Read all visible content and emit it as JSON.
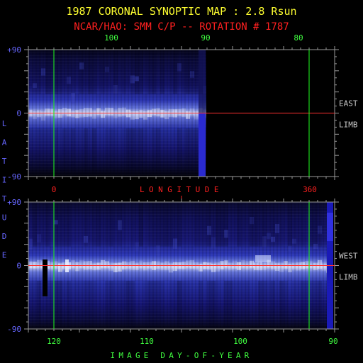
{
  "page": {
    "title": "1987 CORONAL SYNOPTIC MAP : 2.8 Rsun",
    "subtitle": "NCAR/HAO: SMM C/P -- ROTATION # 1787"
  },
  "colors": {
    "title": "#ffff30",
    "subtitle": "#ff2020",
    "axis_blue": "#6666ff",
    "axis_green": "#40ff40",
    "axis_red": "#ff2020",
    "frame": "#9a9a9a",
    "grid_green": "#20ff20",
    "equator_red": "#ff3030",
    "limb_label": "#c8c8c8"
  },
  "chart_data": [
    {
      "type": "heatmap",
      "panel": "east",
      "limb_label": [
        "EAST",
        "LIMB"
      ],
      "ylim": [
        -90,
        90
      ],
      "yticks": [
        {
          "value": 90,
          "label": "+90"
        },
        {
          "value": 0,
          "label": "0"
        },
        {
          "value": -90,
          "label": "-90"
        }
      ],
      "top_axis_ticks": [
        {
          "value": 100,
          "label": "100"
        },
        {
          "value": 90,
          "label": "90"
        },
        {
          "value": 80,
          "label": "80"
        }
      ],
      "bottom_axis_label": "LONGITUDE",
      "bottom_axis_ticks": [
        {
          "value": 0,
          "label": "0"
        },
        {
          "value": 360,
          "label": "360"
        }
      ],
      "vertical_markers": [
        0,
        360
      ],
      "equator_line": 0,
      "data_extent_fraction": 0.58
    },
    {
      "type": "heatmap",
      "panel": "west",
      "limb_label": [
        "WEST",
        "LIMB"
      ],
      "ylim": [
        -90,
        90
      ],
      "yticks": [
        {
          "value": 90,
          "label": "+90"
        },
        {
          "value": 0,
          "label": "0"
        },
        {
          "value": -90,
          "label": "-90"
        }
      ],
      "xlabel": "IMAGE DAY-OF-YEAR",
      "xticks": [
        {
          "value": 120,
          "label": "120"
        },
        {
          "value": 110,
          "label": "110"
        },
        {
          "value": 100,
          "label": "100"
        },
        {
          "value": 90,
          "label": "90"
        }
      ],
      "vertical_markers": [
        120,
        91.8
      ],
      "equator_line": 0
    }
  ],
  "shared": {
    "ylabel": "LATITUDE"
  }
}
